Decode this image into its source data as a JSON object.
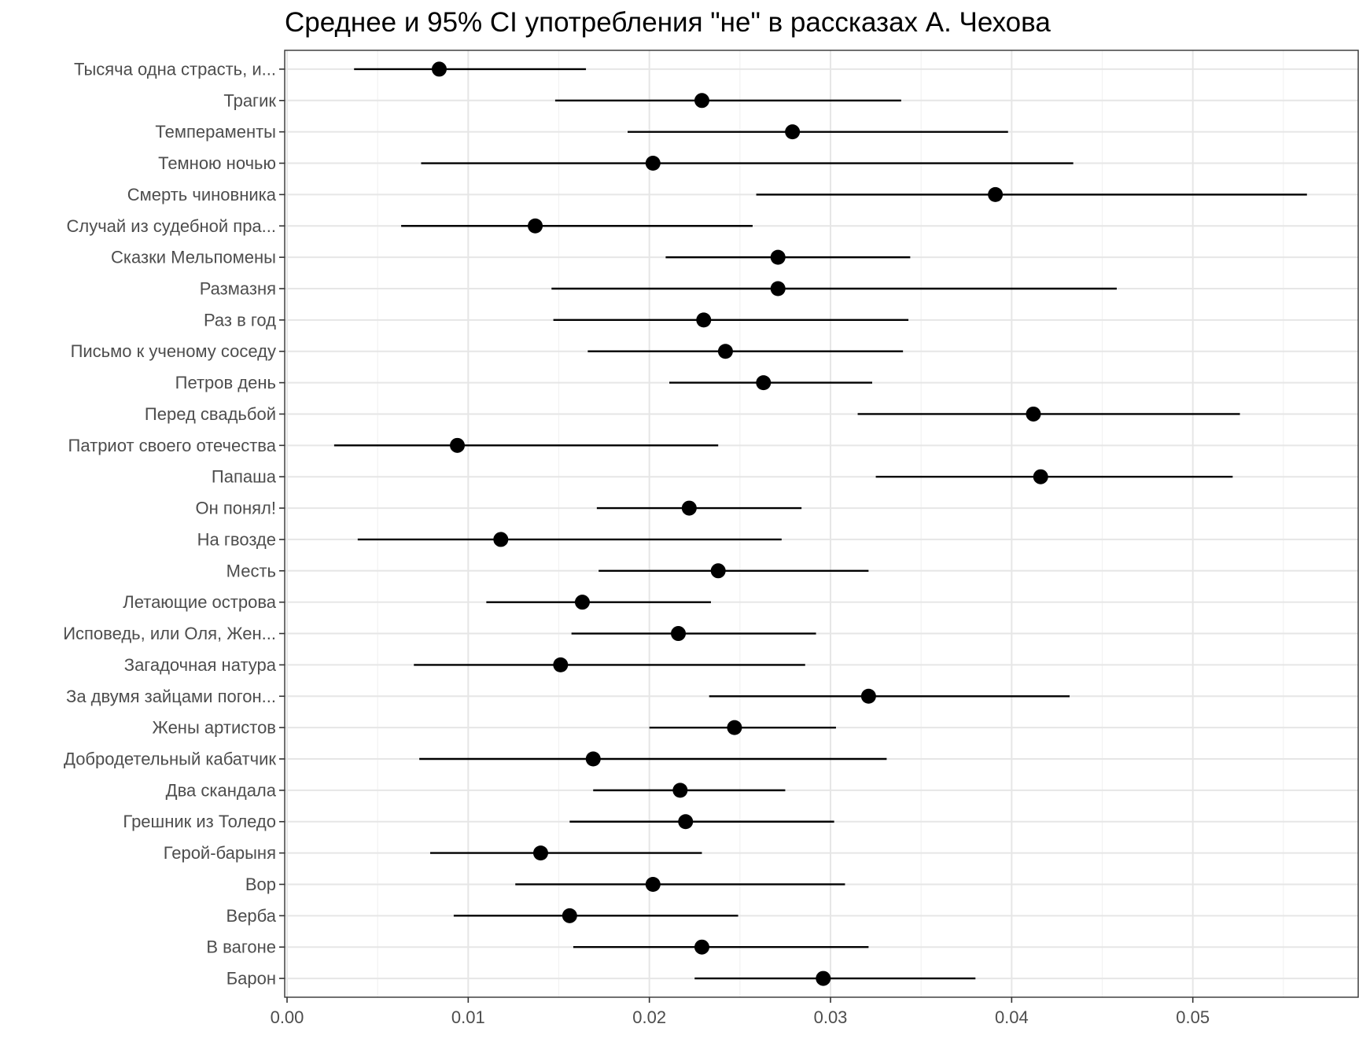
{
  "chart_data": {
    "type": "scatter",
    "subtype": "point-range",
    "title": "Среднее и 95% CI употребления \"не\" в рассказах А. Чехова",
    "xlabel": "",
    "ylabel": "",
    "xlim": [
      0,
      0.059
    ],
    "xticks": [
      0.0,
      0.01,
      0.02,
      0.03,
      0.04,
      0.05
    ],
    "xtick_labels": [
      "0.00",
      "0.01",
      "0.02",
      "0.03",
      "0.04",
      "0.05"
    ],
    "grid": true,
    "legend": "none",
    "point_color": "#000000",
    "categories": [
      "Тысяча одна страсть, и...",
      "Трагик",
      "Темпераменты",
      "Темною ночью",
      "Смерть чиновника",
      "Случай из судебной пра...",
      "Сказки Мельпомены",
      "Размазня",
      "Раз в год",
      "Письмо к ученому соседу",
      "Петров день",
      "Перед свадьбой",
      "Патриот своего отечества",
      "Папаша",
      "Он понял!",
      "На гвозде",
      "Месть",
      "Летающие острова",
      "Исповедь, или Оля, Жен...",
      "Загадочная натура",
      "За двумя зайцами погон...",
      "Жены артистов",
      "Добродетельный кабатчик",
      "Два скандала",
      "Грешник из Толедо",
      "Герой-барыня",
      "Вор",
      "Верба",
      "В вагоне",
      "Барон"
    ],
    "values": [
      0.0084,
      0.0229,
      0.0279,
      0.0202,
      0.0391,
      0.0137,
      0.0271,
      0.0271,
      0.023,
      0.0242,
      0.0263,
      0.0412,
      0.0094,
      0.0416,
      0.0222,
      0.0118,
      0.0238,
      0.0163,
      0.0216,
      0.0151,
      0.0321,
      0.0247,
      0.0169,
      0.0217,
      0.022,
      0.014,
      0.0202,
      0.0156,
      0.0229,
      0.0296
    ],
    "ci_lower": [
      0.0037,
      0.0148,
      0.0188,
      0.0074,
      0.0259,
      0.0063,
      0.0209,
      0.0146,
      0.0147,
      0.0166,
      0.0211,
      0.0315,
      0.0026,
      0.0325,
      0.0171,
      0.0039,
      0.0172,
      0.011,
      0.0157,
      0.007,
      0.0233,
      0.02,
      0.0073,
      0.0169,
      0.0156,
      0.0079,
      0.0126,
      0.0092,
      0.0158,
      0.0225
    ],
    "ci_upper": [
      0.0165,
      0.0339,
      0.0398,
      0.0434,
      0.0563,
      0.0257,
      0.0344,
      0.0458,
      0.0343,
      0.034,
      0.0323,
      0.0526,
      0.0238,
      0.0522,
      0.0284,
      0.0273,
      0.0321,
      0.0234,
      0.0292,
      0.0286,
      0.0432,
      0.0303,
      0.0331,
      0.0275,
      0.0302,
      0.0229,
      0.0308,
      0.0249,
      0.0321,
      0.038
    ]
  }
}
